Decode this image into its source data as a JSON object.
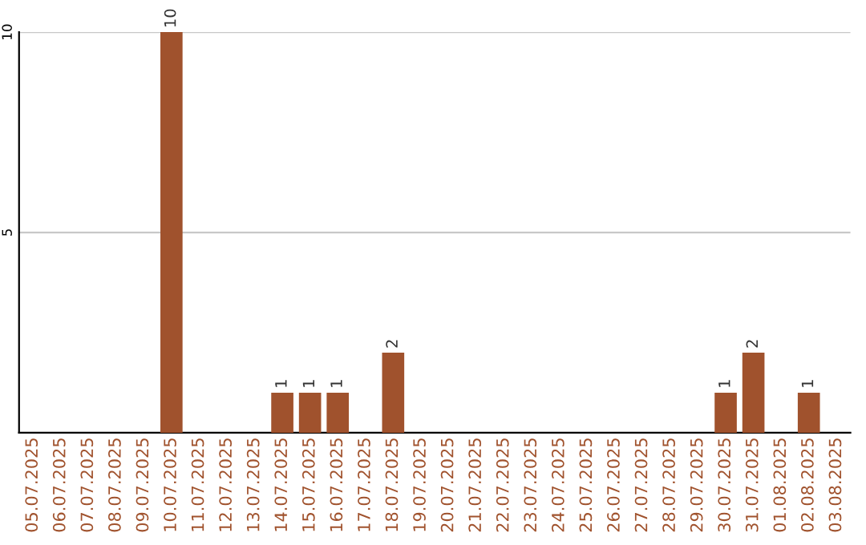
{
  "chart_data": {
    "type": "bar",
    "categories": [
      "05.07.2025",
      "06.07.2025",
      "07.07.2025",
      "08.07.2025",
      "09.07.2025",
      "10.07.2025",
      "11.07.2025",
      "12.07.2025",
      "13.07.2025",
      "14.07.2025",
      "15.07.2025",
      "16.07.2025",
      "17.07.2025",
      "18.07.2025",
      "19.07.2025",
      "20.07.2025",
      "21.07.2025",
      "22.07.2025",
      "23.07.2025",
      "24.07.2025",
      "25.07.2025",
      "26.07.2025",
      "27.07.2025",
      "28.07.2025",
      "29.07.2025",
      "30.07.2025",
      "31.07.2025",
      "01.08.2025",
      "02.08.2025",
      "03.08.2025"
    ],
    "values": [
      0,
      0,
      0,
      0,
      0,
      10,
      0,
      0,
      0,
      1,
      1,
      1,
      0,
      2,
      0,
      0,
      0,
      0,
      0,
      0,
      0,
      0,
      0,
      0,
      0,
      1,
      2,
      0,
      1,
      0
    ],
    "value_labels": [
      null,
      null,
      null,
      null,
      null,
      "10",
      null,
      null,
      null,
      "1",
      "1",
      "1",
      null,
      "2",
      null,
      null,
      null,
      null,
      null,
      null,
      null,
      null,
      null,
      null,
      null,
      "1",
      "2",
      null,
      "1",
      null
    ],
    "color": "#a0522d",
    "ylim": [
      0,
      10
    ],
    "yticks": [
      5,
      10
    ],
    "grid": "y",
    "legend": false
  }
}
